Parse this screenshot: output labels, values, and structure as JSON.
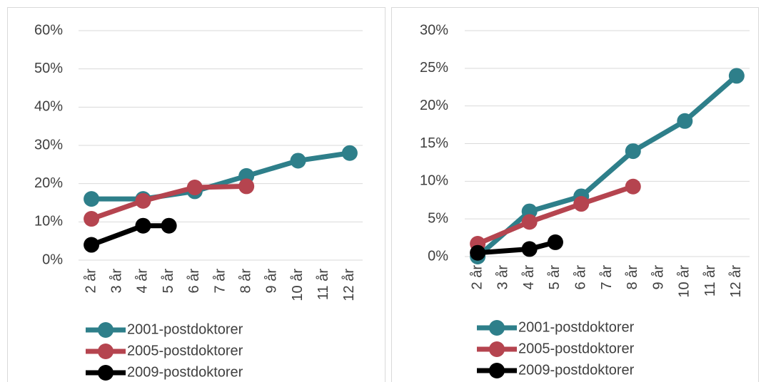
{
  "chart_data": [
    {
      "type": "line",
      "xlim": [
        1.5,
        12.5
      ],
      "xticks": [
        {
          "value": 2,
          "label": "2 år"
        },
        {
          "value": 3,
          "label": "3 år"
        },
        {
          "value": 4,
          "label": "4 år"
        },
        {
          "value": 5,
          "label": "5 år"
        },
        {
          "value": 6,
          "label": "6 år"
        },
        {
          "value": 7,
          "label": "7 år"
        },
        {
          "value": 8,
          "label": "8 år"
        },
        {
          "value": 9,
          "label": "9 år"
        },
        {
          "value": 10,
          "label": "10 år"
        },
        {
          "value": 11,
          "label": "11 år"
        },
        {
          "value": 12,
          "label": "12 år"
        }
      ],
      "ylim": [
        0,
        60
      ],
      "yticks": [
        {
          "value": 0,
          "label": "0%"
        },
        {
          "value": 10,
          "label": "10%"
        },
        {
          "value": 20,
          "label": "20%"
        },
        {
          "value": 30,
          "label": "30%"
        },
        {
          "value": 40,
          "label": "40%"
        },
        {
          "value": 50,
          "label": "50%"
        },
        {
          "value": 60,
          "label": "60%"
        }
      ],
      "grid": true,
      "legend": "bottom",
      "series": [
        {
          "name": "2001-postdoktorer",
          "color": "#2e7f8a",
          "x": [
            2,
            4,
            6,
            8,
            10,
            12
          ],
          "values": [
            16,
            16,
            18,
            22,
            26,
            28
          ]
        },
        {
          "name": "2005-postdoktorer",
          "color": "#b5444f",
          "x": [
            2,
            4,
            6,
            8
          ],
          "values": [
            10.8,
            15.5,
            19,
            19.3
          ]
        },
        {
          "name": "2009-postdoktorer",
          "color": "#000000",
          "x": [
            2,
            4,
            5
          ],
          "values": [
            4,
            9,
            9
          ]
        }
      ]
    },
    {
      "type": "line",
      "xlim": [
        1.5,
        12.5
      ],
      "xticks": [
        {
          "value": 2,
          "label": "2 år"
        },
        {
          "value": 3,
          "label": "3 år"
        },
        {
          "value": 4,
          "label": "4 år"
        },
        {
          "value": 5,
          "label": "5 år"
        },
        {
          "value": 6,
          "label": "6 år"
        },
        {
          "value": 7,
          "label": "7 år"
        },
        {
          "value": 8,
          "label": "8 år"
        },
        {
          "value": 9,
          "label": "9 år"
        },
        {
          "value": 10,
          "label": "10 år"
        },
        {
          "value": 11,
          "label": "11 år"
        },
        {
          "value": 12,
          "label": "12 år"
        }
      ],
      "ylim": [
        0,
        30
      ],
      "yticks": [
        {
          "value": 0,
          "label": "0%"
        },
        {
          "value": 5,
          "label": "5%"
        },
        {
          "value": 10,
          "label": "10%"
        },
        {
          "value": 15,
          "label": "15%"
        },
        {
          "value": 20,
          "label": "20%"
        },
        {
          "value": 25,
          "label": "25%"
        },
        {
          "value": 30,
          "label": "30%"
        }
      ],
      "grid": true,
      "legend": "bottom",
      "series": [
        {
          "name": "2001-postdoktorer",
          "color": "#2e7f8a",
          "x": [
            2,
            4,
            6,
            8,
            10,
            12
          ],
          "values": [
            0,
            6,
            8,
            14,
            18,
            24
          ]
        },
        {
          "name": "2005-postdoktorer",
          "color": "#b5444f",
          "x": [
            2,
            4,
            6,
            8
          ],
          "values": [
            1.7,
            4.6,
            7,
            9.3
          ]
        },
        {
          "name": "2009-postdoktorer",
          "color": "#000000",
          "x": [
            2,
            4,
            5
          ],
          "values": [
            0.5,
            1,
            1.9
          ]
        }
      ]
    }
  ]
}
